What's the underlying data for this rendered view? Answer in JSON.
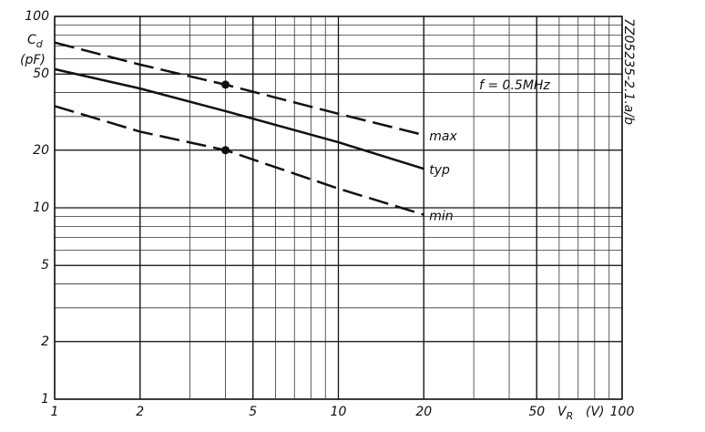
{
  "chart_data": {
    "type": "line",
    "y_label": {
      "main": "C",
      "sub": "d",
      "unit": "(pF)"
    },
    "x_label": {
      "main": "V",
      "sub": "R",
      "unit": "(V)"
    },
    "annotation": "f = 0.5MHz",
    "side_code": "7Z05235-2.1.a/b",
    "log_x": true,
    "log_y": true,
    "grid": true,
    "xlim": [
      1,
      100
    ],
    "ylim": [
      1,
      100
    ],
    "xticks": [
      1,
      2,
      5,
      10,
      20,
      50,
      100
    ],
    "yticks": [
      1,
      2,
      5,
      10,
      20,
      50,
      100
    ],
    "x": [
      1,
      2,
      4,
      10,
      20
    ],
    "series": [
      {
        "name": "max",
        "color": "#111111",
        "dashed": true,
        "marker_index": 2,
        "values": [
          73,
          56,
          44,
          31,
          24
        ]
      },
      {
        "name": "typ",
        "color": "#111111",
        "dashed": false,
        "values": [
          53,
          42,
          32,
          22,
          16
        ]
      },
      {
        "name": "min",
        "color": "#111111",
        "dashed": true,
        "marker_index": 2,
        "values": [
          34,
          25,
          20,
          12.6,
          9.2
        ]
      }
    ]
  }
}
